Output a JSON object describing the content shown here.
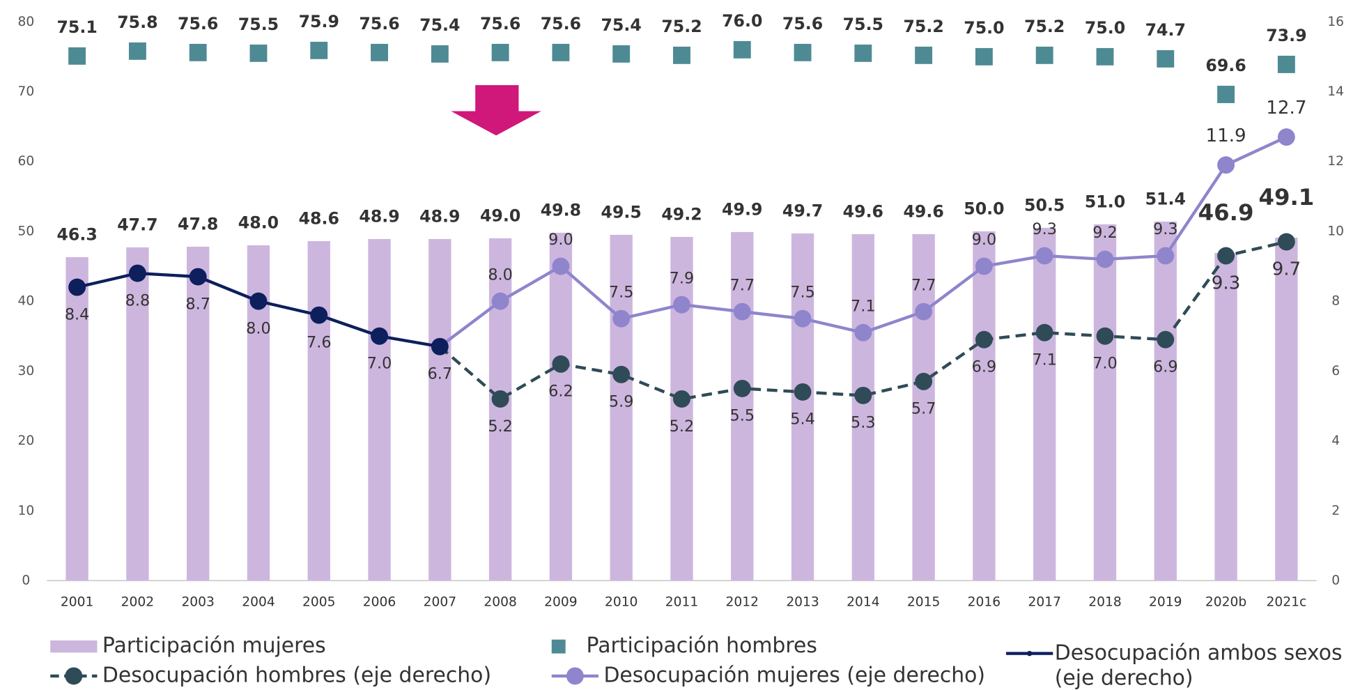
{
  "chart_data": {
    "type": "bar_line_combo",
    "categories": [
      "2001",
      "2002",
      "2003",
      "2004",
      "2005",
      "2006",
      "2007",
      "2008",
      "2009",
      "2010",
      "2011",
      "2012",
      "2013",
      "2014",
      "2015",
      "2016",
      "2017",
      "2018",
      "2019",
      "2020b",
      "2021c"
    ],
    "series": [
      {
        "name": "Participación mujeres",
        "kind": "bar",
        "color": "#cdb6de",
        "values": [
          46.3,
          47.7,
          47.8,
          48.0,
          48.6,
          48.9,
          48.9,
          49.0,
          49.8,
          49.5,
          49.2,
          49.9,
          49.7,
          49.6,
          49.6,
          50.0,
          50.5,
          51.0,
          51.4,
          46.9,
          49.1
        ]
      },
      {
        "name": "Participación hombres",
        "kind": "square",
        "color": "#4e8a94",
        "values": [
          75.1,
          75.8,
          75.6,
          75.5,
          75.9,
          75.6,
          75.4,
          75.6,
          75.6,
          75.4,
          75.2,
          76.0,
          75.6,
          75.5,
          75.2,
          75.0,
          75.2,
          75.0,
          74.7,
          69.6,
          73.9
        ]
      },
      {
        "name": "Desocupación hombres (eje derecho)",
        "kind": "dashed",
        "axis": "y2",
        "color": "#2f4b57",
        "values": [
          null,
          null,
          null,
          null,
          null,
          null,
          6.7,
          5.2,
          6.2,
          5.9,
          5.2,
          5.5,
          5.4,
          5.3,
          5.7,
          6.9,
          7.1,
          7.0,
          6.9,
          9.3,
          9.7
        ]
      },
      {
        "name": "Desocupación mujeres (eje derecho)",
        "kind": "line",
        "axis": "y2",
        "color": "#8e85cc",
        "values": [
          null,
          null,
          null,
          null,
          null,
          null,
          6.7,
          8.0,
          9.0,
          7.5,
          7.9,
          7.7,
          7.5,
          7.1,
          7.7,
          9.0,
          9.3,
          9.2,
          9.3,
          11.9,
          12.7
        ]
      },
      {
        "name": "Desocupación ambos sexos\n(eje derecho)",
        "kind": "line",
        "axis": "y2",
        "color": "#0d1f5c",
        "values": [
          8.4,
          8.8,
          8.7,
          8.0,
          7.6,
          7.0,
          6.7,
          null,
          null,
          null,
          null,
          null,
          null,
          null,
          null,
          null,
          null,
          null,
          null,
          null,
          null
        ]
      }
    ],
    "ylim": [
      0,
      80
    ],
    "yticks": [
      0,
      10,
      20,
      30,
      40,
      50,
      60,
      70,
      80
    ],
    "y2lim": [
      0,
      16
    ],
    "y2ticks": [
      0,
      2,
      4,
      6,
      8,
      10,
      12,
      14,
      16
    ],
    "value_labels": [
      [
        "46.3",
        "47.7",
        "47.8",
        "48.0",
        "48.6",
        "48.9",
        "48.9",
        "49.0",
        "49.8",
        "49.5",
        "49.2",
        "49.9",
        "49.7",
        "49.6",
        "49.6",
        "50.0",
        "50.5",
        "51.0",
        "51.4",
        "46.9",
        "49.1"
      ],
      [
        "75.1",
        "75.8",
        "75.6",
        "75.5",
        "75.9",
        "75.6",
        "75.4",
        "75.6",
        "75.6",
        "75.4",
        "75.2",
        "76.0",
        "75.6",
        "75.5",
        "75.2",
        "75.0",
        "75.2",
        "75.0",
        "74.7",
        "69.6",
        "73.9"
      ],
      [
        null,
        null,
        null,
        null,
        null,
        null,
        null,
        "5.2",
        "6.2",
        "5.9",
        "5.2",
        "5.5",
        "5.4",
        "5.3",
        "5.7",
        "6.9",
        "7.1",
        "7.0",
        "6.9",
        "9.3",
        "9.7"
      ],
      [
        null,
        null,
        null,
        null,
        null,
        null,
        null,
        "8.0",
        "9.0",
        "7.5",
        "7.9",
        "7.7",
        "7.5",
        "7.1",
        "7.7",
        "9.0",
        "9.3",
        "9.2",
        "9.3",
        "11.9",
        "12.7"
      ],
      [
        "8.4",
        "8.8",
        "8.7",
        "8.0",
        "7.6",
        "7.0",
        "6.7",
        null,
        null,
        null,
        null,
        null,
        null,
        null,
        null,
        null,
        null,
        null,
        null,
        null,
        null
      ]
    ]
  }
}
